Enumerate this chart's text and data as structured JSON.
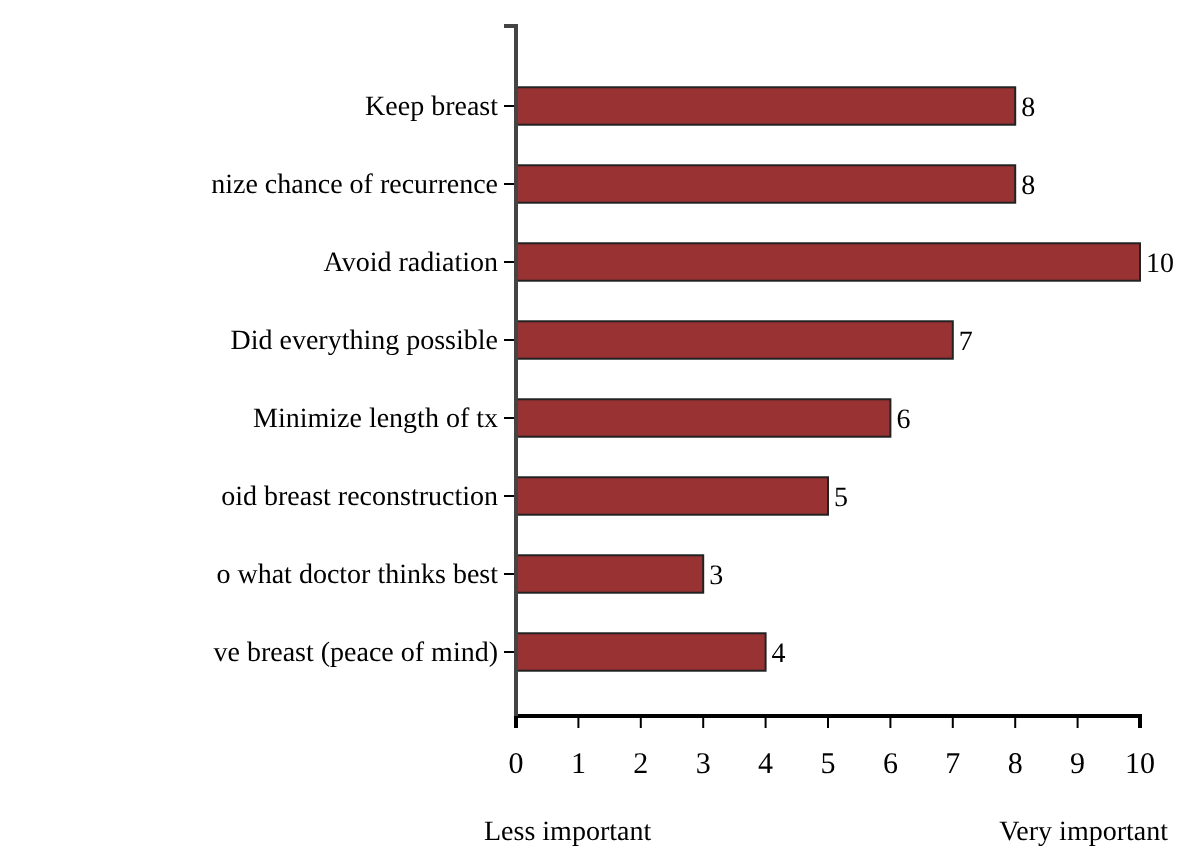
{
  "chart_data": {
    "type": "bar",
    "orientation": "horizontal",
    "categories": [
      "Keep breast",
      "nize chance of recurrence",
      "Avoid radiation",
      "Did everything possible",
      "Minimize length of tx",
      "oid breast reconstruction",
      "o what doctor thinks best",
      "ve breast (peace of mind)"
    ],
    "values": [
      8,
      8,
      10,
      7,
      6,
      5,
      3,
      4
    ],
    "color": "#993333",
    "xlim": [
      0,
      10
    ],
    "xticks": [
      0,
      1,
      2,
      3,
      4,
      5,
      6,
      7,
      8,
      9,
      10
    ],
    "data_labels": true,
    "grid": false,
    "annotations": [
      "Less important",
      "Very important"
    ]
  }
}
